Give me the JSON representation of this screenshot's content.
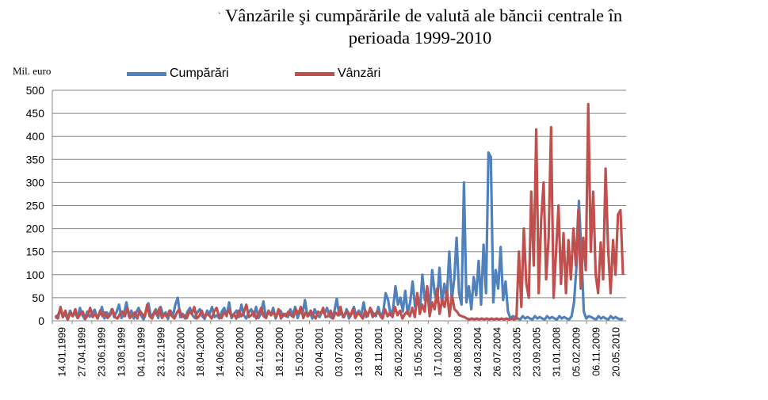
{
  "title_mark": "`",
  "title_line1": "Vânzările şi cumpărările de valută ale băncii centrale în",
  "title_line2": "perioada 1999-2010",
  "colors": {
    "cumparari": "#4f81bd",
    "vanzari": "#c0504d",
    "grid": "#868686",
    "axis": "#868686"
  },
  "chart_data": {
    "type": "line",
    "title": "Vânzările şi cumpărările de valută ale băncii centrale în perioada 1999-2010",
    "ylabel": "Mil. euro",
    "ylim": [
      0,
      500
    ],
    "yticks": [
      0,
      50,
      100,
      150,
      200,
      250,
      300,
      350,
      400,
      450,
      500
    ],
    "grid": true,
    "legend_position": "top",
    "x_tick_labels": [
      "14.01.1999",
      "27.04.1999",
      "23.06.1999",
      "13.08.1999",
      "04.10.1999",
      "23.12.1999",
      "23.02.2000",
      "18.04.2000",
      "14.06.2000",
      "22.08.2000",
      "24.10.2000",
      "18.12.2000",
      "15.02.2001",
      "20.04.2001",
      "03.07.2001",
      "13.09.2001",
      "28.11.2001",
      "26.02.2002",
      "15.05.2002",
      "17.10.2002",
      "08.08.2003",
      "24.03.2004",
      "26.07.2004",
      "23.03.2005",
      "23.09.2005",
      "31.01.2008",
      "05.02.2009",
      "06.11.2009",
      "20.05.2010"
    ],
    "series": [
      {
        "name": "Cumpărări",
        "values": [
          5,
          12,
          25,
          8,
          15,
          3,
          22,
          10,
          18,
          6,
          28,
          12,
          4,
          20,
          9,
          16,
          24,
          7,
          14,
          30,
          5,
          18,
          11,
          25,
          8,
          20,
          35,
          6,
          15,
          40,
          10,
          22,
          5,
          18,
          28,
          12,
          3,
          20,
          38,
          8,
          15,
          25,
          6,
          30,
          12,
          18,
          4,
          22,
          10,
          35,
          50,
          8,
          15,
          5,
          20,
          28,
          12,
          6,
          18,
          25,
          10,
          4,
          22,
          15,
          30,
          8,
          12,
          5,
          20,
          28,
          10,
          40,
          6,
          15,
          22,
          8,
          35,
          12,
          5,
          18,
          25,
          10,
          30,
          6,
          15,
          42,
          8,
          20,
          12,
          28,
          5,
          18,
          22,
          10,
          15,
          8,
          25,
          12,
          30,
          6,
          20,
          15,
          45,
          10,
          18,
          5,
          25,
          12,
          8,
          22,
          15,
          28,
          10,
          6,
          20,
          48,
          12,
          18,
          8,
          25,
          5,
          15,
          30,
          10,
          22,
          12,
          40,
          8,
          18,
          25,
          15,
          10,
          30,
          8,
          20,
          60,
          45,
          12,
          25,
          75,
          35,
          50,
          20,
          65,
          15,
          40,
          85,
          30,
          55,
          20,
          100,
          45,
          70,
          25,
          110,
          60,
          40,
          115,
          35,
          80,
          50,
          150,
          45,
          90,
          180,
          60,
          35,
          300,
          40,
          75,
          25,
          95,
          55,
          130,
          35,
          165,
          60,
          365,
          355,
          40,
          110,
          70,
          160,
          45,
          85,
          20,
          5,
          10,
          8,
          5,
          3,
          10,
          5,
          8,
          5,
          3,
          10,
          5,
          8,
          5,
          3,
          10,
          5,
          8,
          5,
          3,
          10,
          5,
          8,
          5,
          3,
          10,
          40,
          120,
          260,
          150,
          20,
          5,
          10,
          8,
          5,
          3,
          10,
          5,
          8,
          5,
          3,
          10,
          5,
          8,
          5,
          3,
          5
        ]
      },
      {
        "name": "Vânzări",
        "values": [
          12,
          5,
          30,
          8,
          22,
          3,
          18,
          10,
          25,
          6,
          15,
          20,
          4,
          12,
          28,
          8,
          15,
          5,
          22,
          10,
          18,
          6,
          12,
          25,
          8,
          5,
          15,
          20,
          10,
          28,
          6,
          12,
          18,
          5,
          22,
          15,
          8,
          35,
          10,
          5,
          20,
          12,
          28,
          6,
          15,
          8,
          22,
          10,
          5,
          18,
          25,
          8,
          12,
          6,
          20,
          15,
          30,
          5,
          10,
          22,
          8,
          15,
          12,
          5,
          20,
          28,
          10,
          6,
          18,
          12,
          25,
          8,
          15,
          5,
          22,
          10,
          18,
          35,
          8,
          12,
          20,
          5,
          15,
          28,
          10,
          6,
          22,
          12,
          18,
          8,
          25,
          5,
          15,
          10,
          20,
          12,
          8,
          25,
          15,
          30,
          6,
          18,
          10,
          22,
          12,
          5,
          20,
          15,
          28,
          8,
          10,
          22,
          5,
          18,
          12,
          30,
          8,
          15,
          20,
          10,
          25,
          6,
          18,
          12,
          5,
          22,
          10,
          28,
          8,
          15,
          20,
          12,
          5,
          25,
          10,
          18,
          8,
          30,
          12,
          22,
          5,
          15,
          20,
          10,
          28,
          8,
          60,
          15,
          35,
          20,
          75,
          10,
          40,
          25,
          70,
          15,
          45,
          30,
          65,
          10,
          55,
          25,
          20,
          12,
          10,
          8,
          5,
          3,
          5,
          3,
          5,
          3,
          5,
          3,
          5,
          3,
          5,
          3,
          5,
          3,
          5,
          3,
          5,
          3,
          5,
          3,
          5,
          150,
          30,
          200,
          80,
          50,
          280,
          120,
          415,
          60,
          220,
          300,
          90,
          180,
          420,
          50,
          150,
          250,
          80,
          190,
          60,
          175,
          90,
          200,
          120,
          240,
          70,
          180,
          110,
          470,
          150,
          280,
          100,
          60,
          170,
          90,
          330,
          160,
          60,
          175,
          100,
          230,
          240,
          100
        ]
      }
    ]
  }
}
